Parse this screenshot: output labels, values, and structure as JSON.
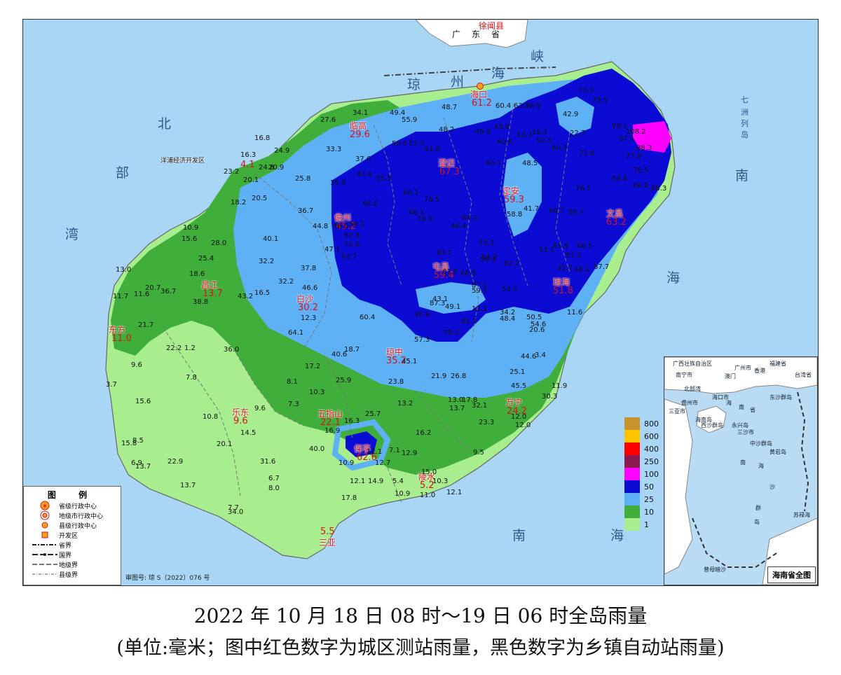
{
  "caption": {
    "line1": "2022 年 10 月 18 日 08 时～19 日 06 时全岛雨量",
    "line2": "(单位:毫米；图中红色数字为城区测站雨量，黑色数字为乡镇自动站雨量)"
  },
  "map": {
    "sea_labels": [
      "琼",
      "州",
      "海",
      "峡",
      "北",
      "部",
      "湾",
      "南",
      "海",
      "南",
      "海",
      "七",
      "洲",
      "列",
      "岛",
      "广",
      "东",
      "省",
      "徐闻县"
    ],
    "review_number": "审图号: 琼 S（2022）076 号",
    "development_zone": "洋浦经济开发区"
  },
  "cities": [
    {
      "name": "海口",
      "value": "61.2"
    },
    {
      "name": "临高",
      "value": "29.6"
    },
    {
      "name": "澄迈",
      "value": "67.3"
    },
    {
      "name": "定安",
      "value": "59.3"
    },
    {
      "name": "文昌",
      "value": "63.2"
    },
    {
      "name": "儋州",
      "value": "45.2"
    },
    {
      "name": "洋浦",
      "value": "4.1"
    },
    {
      "name": "屯昌",
      "value": "59.4"
    },
    {
      "name": "琼海",
      "value": "51.8"
    },
    {
      "name": "昌江",
      "value": "13.7"
    },
    {
      "name": "白沙",
      "value": "30.2"
    },
    {
      "name": "东方",
      "value": "11.0"
    },
    {
      "name": "琼中",
      "value": "35.2"
    },
    {
      "name": "万宁",
      "value": "24.2"
    },
    {
      "name": "乐东",
      "value": "9.6"
    },
    {
      "name": "五指山",
      "value": "22.1"
    },
    {
      "name": "保亭",
      "value": "62.6"
    },
    {
      "name": "陵水",
      "value": "5.2"
    },
    {
      "name": "三亚",
      "value": "5.5"
    }
  ],
  "stations": [
    "34.1",
    "49.4",
    "48.7",
    "60.4",
    "63.7",
    "58.9",
    "73.3",
    "78.5",
    "42.9",
    "22.7",
    "98.1",
    "108.2",
    "27.6",
    "16.8",
    "24.9",
    "16.3",
    "24.8",
    "20.9",
    "23.2",
    "20.1",
    "33.3",
    "37.6",
    "55.9",
    "50.0",
    "57.3",
    "48.2",
    "49.8",
    "45.9",
    "40.6",
    "53.3",
    "58.2",
    "52.5",
    "60.3",
    "72.8",
    "97.1",
    "88.3",
    "77.8",
    "78.5",
    "86.0",
    "88.3",
    "25.8",
    "43.6",
    "55.5",
    "61.8",
    "46.0",
    "40.1",
    "48.5",
    "60.1",
    "78.5",
    "76.1",
    "60.8",
    "35.8",
    "60.1",
    "76.5",
    "64.2",
    "58.8",
    "41.7",
    "60.7",
    "58.7",
    "46.4",
    "18.2",
    "20.5",
    "36.7",
    "44.8",
    "46.0",
    "50.1",
    "67.6",
    "63.7",
    "32.2",
    "40.1",
    "72.6",
    "53.3",
    "59.3",
    "60.5",
    "61.6",
    "57.3",
    "48.1",
    "67.7",
    "10.9",
    "15.6",
    "28.0",
    "25.4",
    "47.1",
    "37.8",
    "83.1",
    "61.9",
    "68.5",
    "54.3",
    "62.2",
    "51.1",
    "32.7",
    "13.0",
    "18.6",
    "32.2",
    "46.6",
    "60.4",
    "87.3",
    "87.1",
    "53.3",
    "59.3",
    "13.2",
    "11.7",
    "11.6",
    "20.7",
    "36.7",
    "16.5",
    "43.2",
    "43.1",
    "49.1",
    "46.9",
    "34.2",
    "48.4",
    "50.5",
    "11.6",
    "38.8",
    "12.3",
    "21.7",
    "64.1",
    "81.7",
    "59.2",
    "57.3",
    "54.6",
    "20.6",
    "22.2",
    "1.2",
    "36.0",
    "18.7",
    "40.6",
    "45.1",
    "44.6",
    "3.4",
    "9.6",
    "7.8",
    "17.2",
    "25.9",
    "23.8",
    "21.9",
    "26.8",
    "25.1",
    "45.5",
    "11.9",
    "3.7",
    "8.1",
    "10.3",
    "15.6",
    "9.6",
    "7.3",
    "25.7",
    "13.2",
    "13.0",
    "13.7",
    "17.8",
    "32.1",
    "30.3",
    "12.0",
    "10.8",
    "14.5",
    "16.2",
    "23.3",
    "12.0",
    "15.8",
    "8.5",
    "20.1",
    "40.0",
    "16.9",
    "16.3",
    "12.1",
    "7.1",
    "12.9",
    "9.5",
    "6.9",
    "13.7",
    "22.9",
    "31.6",
    "10.9",
    "12.7",
    "15.0",
    "6.7",
    "8.0",
    "12.1",
    "14.9",
    "5.4",
    "10.3",
    "13.7",
    "10.9",
    "11.0",
    "12.1",
    "7.7",
    "34.0",
    "17.8"
  ],
  "legend": {
    "title": "图 例",
    "items": [
      {
        "symbol": "provincial-center",
        "label": "省级行政中心"
      },
      {
        "symbol": "prefecture-center",
        "label": "地级市行政中心"
      },
      {
        "symbol": "county-center",
        "label": "县级行政中心"
      },
      {
        "symbol": "dev-zone",
        "label": "开发区"
      },
      {
        "symbol": "province-border",
        "label": "省界"
      },
      {
        "symbol": "national-border",
        "label": "国界"
      },
      {
        "symbol": "prefecture-border",
        "label": "地级界"
      },
      {
        "symbol": "county-border",
        "label": "县级界"
      }
    ]
  },
  "color_scale": [
    {
      "label": "800",
      "color": "#c8932c"
    },
    {
      "label": "600",
      "color": "#ffc400"
    },
    {
      "label": "400",
      "color": "#ff0000"
    },
    {
      "label": "250",
      "color": "#8b1a4f"
    },
    {
      "label": "100",
      "color": "#ff00ff"
    },
    {
      "label": "50",
      "color": "#0b0bd4"
    },
    {
      "label": "25",
      "color": "#5fb1f6"
    },
    {
      "label": "10",
      "color": "#3fae3a"
    },
    {
      "label": "1",
      "color": "#a8ee8e"
    }
  ],
  "inset": {
    "title": "海南省全图",
    "labels": [
      "广西壮族自治区",
      "福建省",
      "南宁市",
      "广州市",
      "香港",
      "澳门",
      "台湾省",
      "北部湾",
      "海口市",
      "东沙群岛",
      "儋州市",
      "海",
      "南",
      "省",
      "三亚市",
      "海南岛",
      "西沙群岛",
      "永兴岛",
      "三沙市",
      "中沙群岛",
      "黄岩岛",
      "南",
      "海",
      "沙",
      "群",
      "岛",
      "苏禄海",
      "曾母暗沙"
    ]
  }
}
